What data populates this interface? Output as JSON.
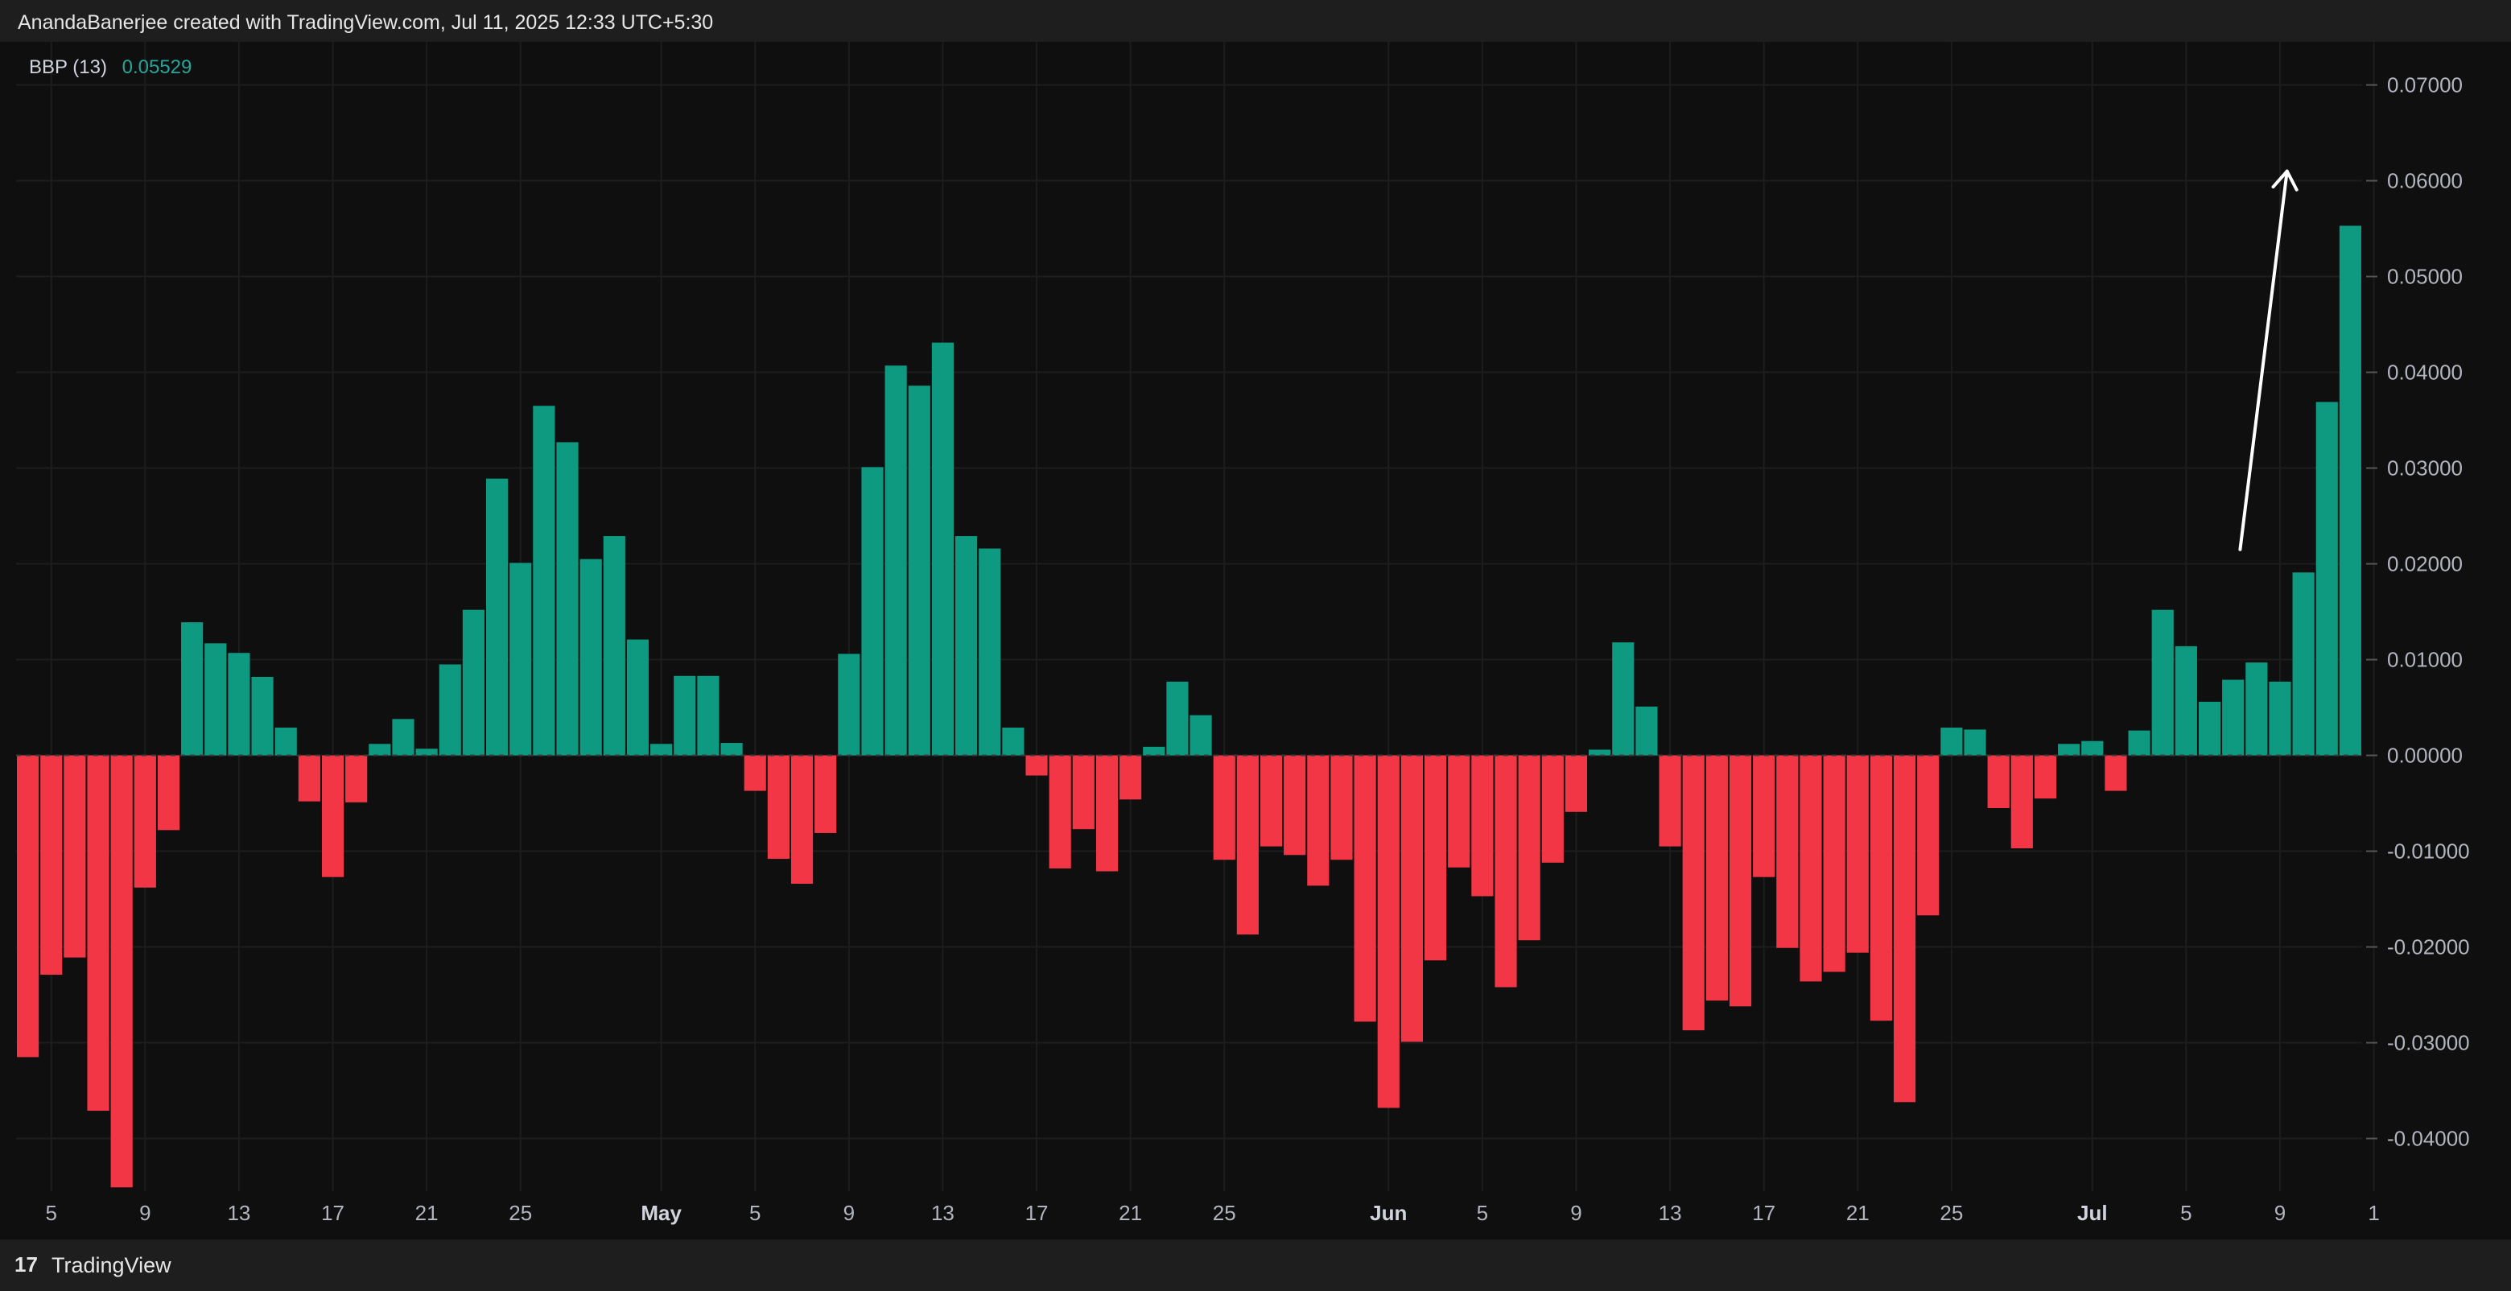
{
  "header": {
    "attribution": "AnandaBanerjee created with TradingView.com, Jul 11, 2025 12:33 UTC+5:30"
  },
  "legend": {
    "name": "BBP (13)",
    "value": "0.05529",
    "value_color": "#26a69a"
  },
  "footer": {
    "logo_glyph": "17",
    "brand": "TradingView"
  },
  "colors": {
    "positive": "#0e9981",
    "negative": "#f23645",
    "grid": "#1d1d1d",
    "background": "#0f0f0f"
  },
  "chart_data": {
    "type": "bar",
    "series": [
      {
        "name": "BBP (13)",
        "values": [
          -0.0315,
          -0.0229,
          -0.0211,
          -0.0371,
          -0.0451,
          -0.0138,
          -0.0078,
          0.0139,
          0.0117,
          0.0107,
          0.0082,
          0.0029,
          -0.0048,
          -0.0127,
          -0.0049,
          0.0012,
          0.0038,
          0.0007,
          0.0095,
          0.0152,
          0.0289,
          0.0201,
          0.0365,
          0.0327,
          0.0205,
          0.0229,
          0.0121,
          0.0012,
          0.0083,
          0.0083,
          0.0013,
          -0.0037,
          -0.0108,
          -0.0134,
          -0.0081,
          0.0106,
          0.0301,
          0.0407,
          0.0386,
          0.0431,
          0.0229,
          0.0216,
          0.0029,
          -0.0021,
          -0.0118,
          -0.0077,
          -0.0121,
          -0.0046,
          0.0009,
          0.0077,
          0.0042,
          -0.0109,
          -0.0187,
          -0.0095,
          -0.0104,
          -0.0136,
          -0.0109,
          -0.0278,
          -0.0368,
          -0.0299,
          -0.0214,
          -0.0117,
          -0.0147,
          -0.0242,
          -0.0193,
          -0.0112,
          -0.0059,
          0.0006,
          0.0118,
          0.0051,
          -0.0095,
          -0.0287,
          -0.0256,
          -0.0262,
          -0.0127,
          -0.0201,
          -0.0236,
          -0.0226,
          -0.0206,
          -0.0277,
          -0.0362,
          -0.0167,
          0.0029,
          0.0027,
          -0.0055,
          -0.0097,
          -0.0045,
          0.0012,
          0.0015,
          -0.0037,
          0.0026,
          0.0152,
          0.0114,
          0.0056,
          0.0079,
          0.0097,
          0.0077,
          0.0191,
          0.0369,
          0.0553
        ]
      }
    ],
    "ylim": [
      -0.0455,
      0.0745
    ],
    "y_ticks": [
      "0.07000",
      "0.06000",
      "0.05000",
      "0.04000",
      "0.03000",
      "0.02000",
      "0.01000",
      "0.00000",
      "-0.01000",
      "-0.02000",
      "-0.03000",
      "-0.04000"
    ],
    "y_tick_values": [
      0.07,
      0.06,
      0.05,
      0.04,
      0.03,
      0.02,
      0.01,
      0,
      -0.01,
      -0.02,
      -0.03,
      -0.04
    ],
    "x_ticks": [
      {
        "label": "5",
        "bar": 1.5
      },
      {
        "label": "9",
        "bar": 5.5
      },
      {
        "label": "13",
        "bar": 9.5
      },
      {
        "label": "17",
        "bar": 13.5
      },
      {
        "label": "21",
        "bar": 17.5
      },
      {
        "label": "25",
        "bar": 21.5
      },
      {
        "label": "May",
        "bar": 27.5,
        "bold": true
      },
      {
        "label": "5",
        "bar": 31.5
      },
      {
        "label": "9",
        "bar": 35.5
      },
      {
        "label": "13",
        "bar": 39.5
      },
      {
        "label": "17",
        "bar": 43.5
      },
      {
        "label": "21",
        "bar": 47.5
      },
      {
        "label": "25",
        "bar": 51.5
      },
      {
        "label": "Jun",
        "bar": 58.5,
        "bold": true
      },
      {
        "label": "5",
        "bar": 62.5
      },
      {
        "label": "9",
        "bar": 66.5
      },
      {
        "label": "13",
        "bar": 70.5
      },
      {
        "label": "17",
        "bar": 74.5
      },
      {
        "label": "21",
        "bar": 78.5
      },
      {
        "label": "25",
        "bar": 82.5
      },
      {
        "label": "Jul",
        "bar": 88.5,
        "bold": true
      },
      {
        "label": "5",
        "bar": 92.5
      },
      {
        "label": "9",
        "bar": 96.5
      },
      {
        "label": "1",
        "bar": 100.5
      }
    ],
    "grid": true,
    "annotation": {
      "type": "arrow",
      "color": "#ffffff",
      "from_bar": 94.8,
      "from_value": 0.0215,
      "to_bar": 96.8,
      "to_value": 0.061
    }
  }
}
